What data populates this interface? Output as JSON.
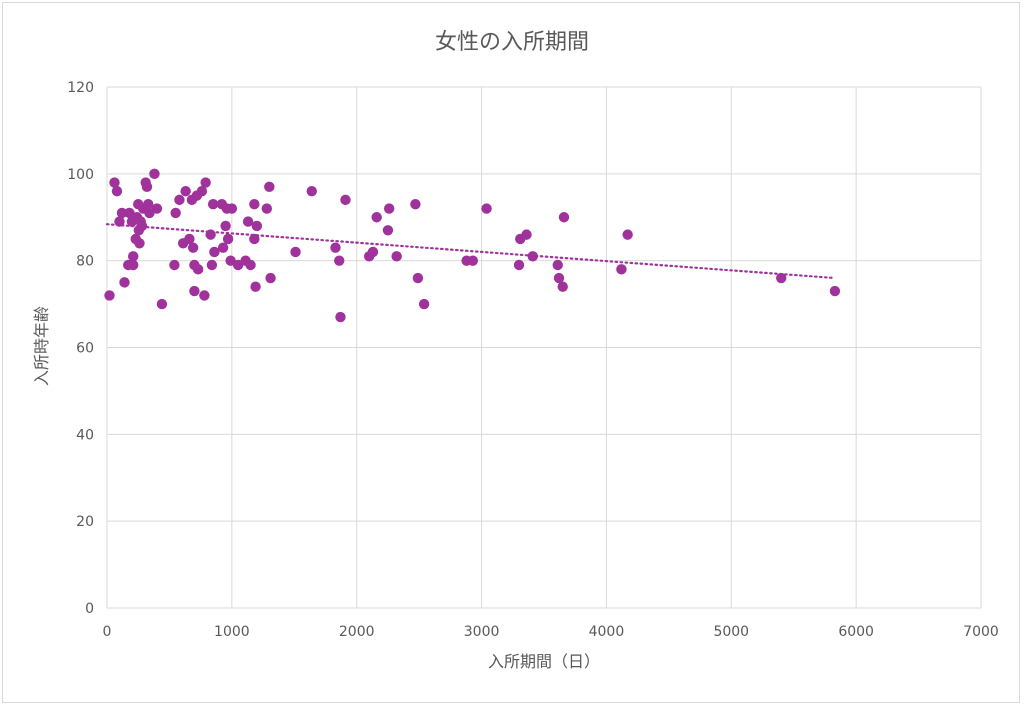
{
  "chart_data": {
    "type": "scatter",
    "title": "女性の入所期間",
    "xlabel": "入所期間（日）",
    "ylabel": "入所時年齢",
    "xlim": [
      0,
      7000
    ],
    "ylim": [
      0,
      120
    ],
    "x_ticks": [
      0,
      1000,
      2000,
      3000,
      4000,
      5000,
      6000,
      7000
    ],
    "y_ticks": [
      0,
      20,
      40,
      60,
      80,
      100,
      120
    ],
    "grid": true,
    "legend": "none",
    "marker_color": "#a0329b",
    "trendline": {
      "type": "linear",
      "style": "dotted",
      "color": "#a0329b",
      "x": [
        0,
        5830
      ],
      "y": [
        88.4,
        76
      ]
    },
    "series": [
      {
        "points": [
          [
            20,
            72
          ],
          [
            60,
            98
          ],
          [
            80,
            96
          ],
          [
            100,
            89
          ],
          [
            120,
            91
          ],
          [
            140,
            75
          ],
          [
            170,
            79
          ],
          [
            180,
            91
          ],
          [
            200,
            89
          ],
          [
            210,
            79
          ],
          [
            210,
            81
          ],
          [
            230,
            85
          ],
          [
            240,
            90
          ],
          [
            250,
            93
          ],
          [
            255,
            87
          ],
          [
            260,
            84
          ],
          [
            270,
            89
          ],
          [
            280,
            88
          ],
          [
            290,
            92
          ],
          [
            310,
            98
          ],
          [
            320,
            97
          ],
          [
            330,
            93
          ],
          [
            340,
            91
          ],
          [
            380,
            100
          ],
          [
            400,
            92
          ],
          [
            440,
            70
          ],
          [
            540,
            79
          ],
          [
            550,
            91
          ],
          [
            580,
            94
          ],
          [
            610,
            84
          ],
          [
            630,
            96
          ],
          [
            660,
            85
          ],
          [
            680,
            94
          ],
          [
            690,
            83
          ],
          [
            700,
            73
          ],
          [
            700,
            79
          ],
          [
            720,
            95
          ],
          [
            730,
            78
          ],
          [
            760,
            96
          ],
          [
            780,
            72
          ],
          [
            790,
            98
          ],
          [
            830,
            86
          ],
          [
            840,
            79
          ],
          [
            850,
            93
          ],
          [
            860,
            82
          ],
          [
            920,
            93
          ],
          [
            930,
            83
          ],
          [
            950,
            88
          ],
          [
            960,
            92
          ],
          [
            970,
            85
          ],
          [
            990,
            80
          ],
          [
            1000,
            92
          ],
          [
            1050,
            79
          ],
          [
            1110,
            80
          ],
          [
            1130,
            89
          ],
          [
            1150,
            79
          ],
          [
            1180,
            93
          ],
          [
            1180,
            85
          ],
          [
            1190,
            74
          ],
          [
            1200,
            88
          ],
          [
            1280,
            92
          ],
          [
            1300,
            97
          ],
          [
            1310,
            76
          ],
          [
            1510,
            82
          ],
          [
            1640,
            96
          ],
          [
            1830,
            83
          ],
          [
            1860,
            80
          ],
          [
            1870,
            67
          ],
          [
            1910,
            94
          ],
          [
            2100,
            81
          ],
          [
            2130,
            82
          ],
          [
            2160,
            90
          ],
          [
            2250,
            87
          ],
          [
            2260,
            92
          ],
          [
            2320,
            81
          ],
          [
            2470,
            93
          ],
          [
            2490,
            76
          ],
          [
            2540,
            70
          ],
          [
            2880,
            80
          ],
          [
            2930,
            80
          ],
          [
            3040,
            92
          ],
          [
            3300,
            79
          ],
          [
            3310,
            85
          ],
          [
            3360,
            86
          ],
          [
            3410,
            81
          ],
          [
            3610,
            79
          ],
          [
            3620,
            76
          ],
          [
            3650,
            74
          ],
          [
            3660,
            90
          ],
          [
            4120,
            78
          ],
          [
            4170,
            86
          ],
          [
            5400,
            76
          ],
          [
            5830,
            73
          ]
        ]
      }
    ]
  }
}
